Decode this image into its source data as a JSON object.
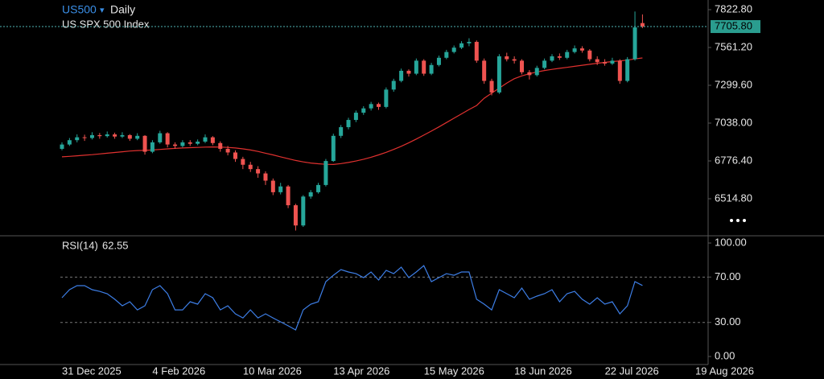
{
  "header": {
    "symbol": "US500",
    "interval": "Daily",
    "name": "US SPX 500 Index"
  },
  "chart_data": [
    {
      "type": "candlestick",
      "categories": [
        "31 Dec 2025",
        null,
        null,
        null,
        null,
        null,
        null,
        null,
        null,
        null,
        null,
        null,
        "4 Feb 2026",
        null,
        null,
        null,
        null,
        null,
        null,
        null,
        null,
        null,
        null,
        null,
        "10 Mar 2026",
        null,
        null,
        null,
        null,
        null,
        null,
        null,
        null,
        null,
        null,
        null,
        "13 Apr 2026",
        null,
        null,
        null,
        null,
        null,
        null,
        null,
        null,
        null,
        null,
        null,
        "15 May 2026",
        null,
        null,
        null,
        null,
        null,
        null,
        null,
        null,
        null,
        null,
        null,
        "18 Jun 2026",
        null,
        null,
        null,
        null,
        null,
        null,
        null,
        null,
        null,
        null,
        null,
        "22 Jul 2026",
        null,
        null,
        null,
        null,
        null,
        null,
        null,
        null,
        null,
        null,
        null,
        "19 Aug 2026",
        null
      ],
      "open": [
        6860,
        6890,
        6920,
        6940,
        6935,
        6955,
        6948,
        6960,
        6945,
        6955,
        6930,
        6950,
        6840,
        6905,
        6968,
        6890,
        6880,
        6905,
        6895,
        6910,
        6940,
        6900,
        6860,
        6835,
        6790,
        6750,
        6720,
        6690,
        6640,
        6560,
        6600,
        6470,
        6330,
        6530,
        6560,
        6610,
        6776,
        6950,
        7010,
        7060,
        7110,
        7140,
        7170,
        7150,
        7270,
        7330,
        7400,
        7380,
        7470,
        7380,
        7440,
        7490,
        7530,
        7560,
        7590,
        7600,
        7470,
        7330,
        7250,
        7500,
        7480,
        7470,
        7390,
        7370,
        7420,
        7470,
        7500,
        7490,
        7530,
        7555,
        7540,
        7480,
        7460,
        7450,
        7470,
        7330,
        7480,
        7730,
        null,
        null,
        null,
        null,
        null,
        null,
        null,
        null
      ],
      "high": [
        6905,
        6935,
        6960,
        6958,
        6975,
        6970,
        6980,
        6972,
        6975,
        6962,
        6968,
        6955,
        6920,
        6985,
        6975,
        6905,
        6920,
        6920,
        6925,
        6960,
        6948,
        6912,
        6880,
        6850,
        6805,
        6770,
        6740,
        6705,
        6655,
        6625,
        6610,
        6480,
        6540,
        6575,
        6625,
        6790,
        6965,
        7025,
        7075,
        7125,
        7155,
        7185,
        7180,
        7285,
        7345,
        7415,
        7410,
        7485,
        7480,
        7455,
        7505,
        7545,
        7575,
        7605,
        7625,
        7610,
        7485,
        7345,
        7515,
        7525,
        7500,
        7480,
        7405,
        7435,
        7485,
        7515,
        7520,
        7545,
        7575,
        7570,
        7550,
        7500,
        7480,
        7490,
        7480,
        7495,
        7810,
        7790,
        null,
        null,
        null,
        null,
        null,
        null,
        null,
        null
      ],
      "low": [
        6850,
        6880,
        6905,
        6915,
        6925,
        6930,
        6938,
        6930,
        6935,
        6915,
        6920,
        6820,
        6830,
        6895,
        6870,
        6860,
        6870,
        6880,
        6885,
        6900,
        6885,
        6840,
        6815,
        6770,
        6720,
        6700,
        6660,
        6610,
        6540,
        6545,
        6450,
        6295,
        6320,
        6515,
        6550,
        6600,
        6770,
        6935,
        6995,
        7045,
        7095,
        7125,
        7130,
        7140,
        7255,
        7320,
        7360,
        7370,
        7365,
        7370,
        7430,
        7480,
        7520,
        7550,
        7570,
        7455,
        7310,
        7230,
        7240,
        7465,
        7450,
        7375,
        7340,
        7360,
        7410,
        7460,
        7475,
        7480,
        7520,
        7525,
        7465,
        7440,
        7435,
        7440,
        7310,
        7320,
        7470,
        7695,
        null,
        null,
        null,
        null,
        null,
        null,
        null,
        null
      ],
      "close": [
        6890,
        6920,
        6940,
        6935,
        6955,
        6948,
        6960,
        6945,
        6955,
        6930,
        6950,
        6840,
        6905,
        6968,
        6890,
        6880,
        6905,
        6895,
        6910,
        6940,
        6900,
        6860,
        6835,
        6790,
        6750,
        6720,
        6690,
        6640,
        6560,
        6600,
        6470,
        6330,
        6530,
        6560,
        6610,
        6776,
        6950,
        7010,
        7060,
        7110,
        7140,
        7170,
        7150,
        7270,
        7330,
        7400,
        7380,
        7470,
        7380,
        7440,
        7490,
        7530,
        7560,
        7590,
        7600,
        7470,
        7330,
        7250,
        7500,
        7480,
        7470,
        7390,
        7370,
        7420,
        7470,
        7500,
        7490,
        7530,
        7555,
        7540,
        7480,
        7460,
        7450,
        7470,
        7330,
        7480,
        7700,
        7705.8,
        null,
        null,
        null,
        null,
        null,
        null,
        null,
        null
      ],
      "up_color": "#26a69a",
      "down_color": "#ef5350",
      "ma": {
        "color": "#e0312f",
        "values": [
          6805,
          6808,
          6812,
          6816,
          6820,
          6825,
          6830,
          6835,
          6840,
          6845,
          6848,
          6850,
          6852,
          6856,
          6860,
          6863,
          6866,
          6868,
          6870,
          6872,
          6873,
          6872,
          6870,
          6866,
          6860,
          6852,
          6842,
          6830,
          6818,
          6805,
          6792,
          6780,
          6770,
          6762,
          6757,
          6753,
          6752,
          6758,
          6766,
          6776,
          6788,
          6802,
          6818,
          6836,
          6856,
          6878,
          6902,
          6928,
          6955,
          6983,
          7012,
          7042,
          7072,
          7102,
          7132,
          7160,
          7210,
          7245,
          7280,
          7315,
          7345,
          7365,
          7380,
          7392,
          7402,
          7410,
          7417,
          7424,
          7431,
          7438,
          7445,
          7452,
          7458,
          7464,
          7468,
          7474,
          7482,
          7489,
          null,
          null,
          null,
          null,
          null,
          null,
          null,
          null
        ]
      },
      "price_line": {
        "value": 7705.8,
        "label": "7705.80",
        "color": "#2a9d8f"
      },
      "ylim": [
        6258.8,
        7889.6
      ],
      "yticks": [
        {
          "value": 6514.8,
          "label": "6514.80"
        },
        {
          "value": 6776.4,
          "label": "6776.40"
        },
        {
          "value": 7038,
          "label": "7038.00"
        },
        {
          "value": 7299.6,
          "label": "7299.60"
        },
        {
          "value": 7561.2,
          "label": "7561.20"
        },
        {
          "value": 7822.8,
          "label": "7822.80"
        }
      ]
    },
    {
      "type": "line",
      "title": "RSI(14)",
      "series": [
        {
          "color": "#3d7ee6",
          "values": [
            51.8,
            58.9,
            62.4,
            62.4,
            58.9,
            57.4,
            55.3,
            50.4,
            44.7,
            48.2,
            41.1,
            44.7,
            58.9,
            62.4,
            55.3,
            41.1,
            41.1,
            48.2,
            46.1,
            55.3,
            51.8,
            41.1,
            44.7,
            37.6,
            34.0,
            41.1,
            34.0,
            37.6,
            34.0,
            30.5,
            27.0,
            23.4,
            41.1,
            46.1,
            48.2,
            66.0,
            71.6,
            76.6,
            74.5,
            73.0,
            69.5,
            74.5,
            67.4,
            75.9,
            73.0,
            78.7,
            69.5,
            74.5,
            80.1,
            66.0,
            69.5,
            73.0,
            71.6,
            74.5,
            74.5,
            50.4,
            46.1,
            41.1,
            58.9,
            55.3,
            51.8,
            60.3,
            50.4,
            53.2,
            55.3,
            58.9,
            48.2,
            55.3,
            57.4,
            50.4,
            46.1,
            51.8,
            46.1,
            48.2,
            37.6,
            44.7,
            66.0,
            62.55,
            null,
            null,
            null,
            null,
            null,
            null,
            null,
            null
          ]
        }
      ],
      "levels": [
        30,
        70
      ],
      "ylim": [
        -7.1,
        106.4
      ],
      "yticks": [
        {
          "value": 0,
          "label": "0.00"
        },
        {
          "value": 30,
          "label": "30.00"
        },
        {
          "value": 70,
          "label": "70.00"
        },
        {
          "value": 100,
          "label": "100.00"
        }
      ]
    }
  ]
}
